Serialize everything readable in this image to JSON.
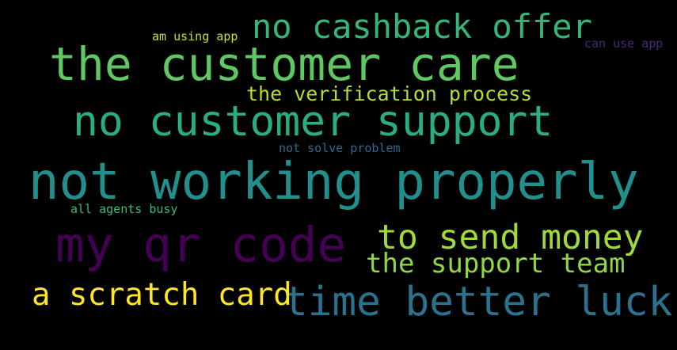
{
  "background": "#000000",
  "words": [
    {
      "text": "not working properly",
      "color": "#21908d"
    },
    {
      "text": "the customer care",
      "color": "#5ec962"
    },
    {
      "text": "no customer support",
      "color": "#29af7f"
    },
    {
      "text": "my qr code",
      "color": "#440154"
    },
    {
      "text": "no cashback offer",
      "color": "#35b779"
    },
    {
      "text": "time better luck",
      "color": "#2c728e"
    },
    {
      "text": "to send money",
      "color": "#a0da39"
    },
    {
      "text": "a scratch card",
      "color": "#fde725"
    },
    {
      "text": "the support team",
      "color": "#90d743"
    },
    {
      "text": "the verification process",
      "color": "#b5de2b"
    },
    {
      "text": "am using app",
      "color": "#c8e020"
    },
    {
      "text": "can use app",
      "color": "#482878"
    },
    {
      "text": "not solve problem",
      "color": "#31688e"
    },
    {
      "text": "all agents busy",
      "color": "#3aba76"
    }
  ]
}
